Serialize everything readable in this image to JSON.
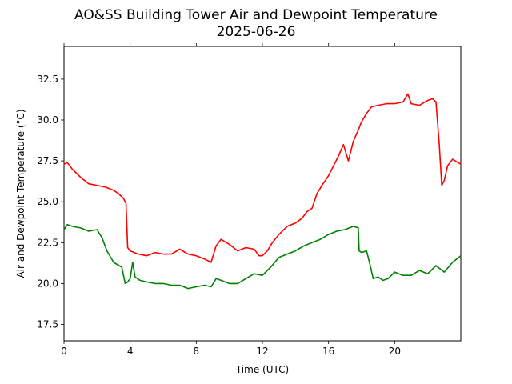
{
  "chart_data": {
    "type": "line",
    "title": "AO&SS Building Tower Air and Dewpoint Temperature",
    "subtitle": "2025-06-26",
    "xlabel": "Time (UTC)",
    "ylabel": "Air and Dewpoint Temperature (°C)",
    "xlim": [
      0,
      24
    ],
    "ylim": [
      16.5,
      34.5
    ],
    "xticks": [
      0,
      4,
      8,
      12,
      16,
      20
    ],
    "xtick_labels": [
      "0",
      "4",
      "8",
      "12",
      "16",
      "20"
    ],
    "yticks": [
      17.5,
      20.0,
      22.5,
      25.0,
      27.5,
      30.0,
      32.5
    ],
    "ytick_labels": [
      "17.5",
      "20.0",
      "22.5",
      "25.0",
      "27.5",
      "30.0",
      "32.5"
    ],
    "grid": false,
    "series": [
      {
        "color": "#ff0000",
        "x": [
          0,
          0.2,
          0.5,
          1.0,
          1.5,
          2.0,
          2.5,
          3.0,
          3.3,
          3.6,
          3.75,
          3.85,
          4.0,
          4.5,
          5.0,
          5.5,
          6.0,
          6.5,
          7.0,
          7.5,
          8.0,
          8.5,
          8.9,
          9.2,
          9.5,
          10.0,
          10.5,
          11.0,
          11.5,
          11.8,
          12.0,
          12.3,
          12.6,
          13.0,
          13.5,
          14.0,
          14.4,
          14.7,
          15.0,
          15.3,
          15.6,
          16.0,
          16.3,
          16.6,
          16.9,
          17.2,
          17.5,
          17.8,
          18.0,
          18.3,
          18.6,
          19.0,
          19.5,
          20.0,
          20.5,
          20.8,
          21.0,
          21.5,
          22.0,
          22.3,
          22.5,
          22.7,
          22.85,
          23.0,
          23.2,
          23.5,
          24.0
        ],
        "y": [
          27.3,
          27.4,
          27.0,
          26.5,
          26.1,
          26.0,
          25.9,
          25.7,
          25.5,
          25.2,
          24.9,
          22.2,
          22.0,
          21.8,
          21.7,
          21.9,
          21.8,
          21.8,
          22.1,
          21.8,
          21.7,
          21.5,
          21.3,
          22.3,
          22.7,
          22.4,
          22.0,
          22.2,
          22.1,
          21.7,
          21.7,
          22.0,
          22.5,
          23.0,
          23.5,
          23.7,
          24.0,
          24.4,
          24.6,
          25.5,
          26.0,
          26.6,
          27.2,
          27.8,
          28.5,
          27.5,
          28.7,
          29.4,
          29.9,
          30.4,
          30.8,
          30.9,
          31.0,
          31.0,
          31.1,
          31.6,
          31.0,
          30.9,
          31.2,
          31.3,
          31.1,
          28.5,
          26.0,
          26.3,
          27.2,
          27.6,
          27.3
        ]
      },
      {
        "color": "#008000",
        "x": [
          0,
          0.2,
          0.5,
          1.0,
          1.5,
          2.0,
          2.3,
          2.6,
          3.0,
          3.5,
          3.7,
          3.85,
          4.0,
          4.15,
          4.3,
          4.6,
          5.0,
          5.5,
          6.0,
          6.5,
          7.0,
          7.5,
          8.0,
          8.5,
          8.9,
          9.2,
          9.5,
          10.0,
          10.5,
          11.0,
          11.5,
          12.0,
          12.5,
          13.0,
          13.5,
          14.0,
          14.5,
          15.0,
          15.5,
          16.0,
          16.5,
          17.0,
          17.5,
          17.8,
          17.85,
          18.0,
          18.3,
          18.5,
          18.7,
          19.0,
          19.3,
          19.6,
          20.0,
          20.5,
          21.0,
          21.5,
          22.0,
          22.5,
          23.0,
          23.5,
          24.0
        ],
        "y": [
          23.3,
          23.6,
          23.5,
          23.4,
          23.2,
          23.3,
          22.8,
          22.0,
          21.3,
          21.0,
          20.0,
          20.1,
          20.3,
          21.3,
          20.4,
          20.2,
          20.1,
          20.0,
          20.0,
          19.9,
          19.9,
          19.7,
          19.8,
          19.9,
          19.8,
          20.3,
          20.2,
          20.0,
          20.0,
          20.3,
          20.6,
          20.5,
          21.0,
          21.6,
          21.8,
          22.0,
          22.3,
          22.5,
          22.7,
          23.0,
          23.2,
          23.3,
          23.5,
          23.4,
          22.0,
          21.9,
          22.0,
          21.2,
          20.3,
          20.4,
          20.2,
          20.3,
          20.7,
          20.5,
          20.5,
          20.8,
          20.6,
          21.1,
          20.7,
          21.3,
          21.7
        ]
      }
    ]
  }
}
